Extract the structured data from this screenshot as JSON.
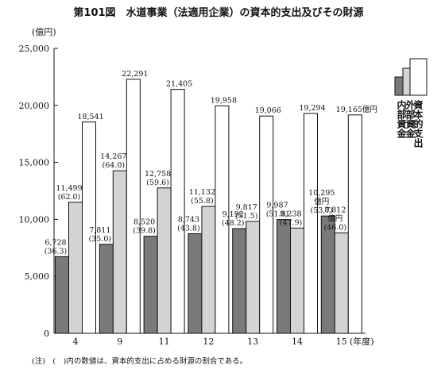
{
  "chart_data": {
    "type": "bar",
    "title": "第101図　水道事業（法適用企業）の資本的支出及びその財源",
    "y_label": "(億円)",
    "x_label": "(年度)",
    "categories": [
      "4",
      "9",
      "11",
      "12",
      "13",
      "14",
      "15"
    ],
    "series": [
      {
        "name": "内部資金",
        "color": "#7a7a7a",
        "values": [
          6728,
          7811,
          8520,
          8743,
          9192,
          9987,
          10295
        ],
        "value_labels": [
          "6,728",
          "7,811",
          "8,520",
          "8,743",
          "9,192",
          "9,987",
          "10,295 億円"
        ],
        "share_labels": [
          "(36.3)",
          "(35.0)",
          "(39.8)",
          "(43.8)",
          "(48.2)",
          "(51.8)",
          "(53.7)"
        ]
      },
      {
        "name": "外部資金",
        "color": "#d4d4d4",
        "values": [
          11499,
          14267,
          12758,
          11132,
          9817,
          9238,
          8812
        ],
        "value_labels": [
          "11,499",
          "14,267",
          "12,758",
          "11,132",
          "9,817",
          "9,238",
          "8,812 億円"
        ],
        "share_labels": [
          "(62.0)",
          "(64.0)",
          "(59.6)",
          "(55.8)",
          "(51.5)",
          "(47.9)",
          "(46.0)"
        ]
      },
      {
        "name": "資本的支出",
        "color": "#ffffff",
        "values": [
          18541,
          22291,
          21405,
          19958,
          19066,
          19294,
          19165
        ],
        "value_labels": [
          "18,541",
          "22,291",
          "21,405",
          "19,958",
          "19,066",
          "19,294",
          "19,165億円"
        ]
      }
    ],
    "ylim": [
      0,
      25000
    ],
    "yticks": [
      0,
      {
        "value": 5000,
        "label": "5,000"
      },
      {
        "value": 10000,
        "label": "10,000"
      },
      {
        "value": 15000,
        "label": "15,000"
      },
      {
        "value": 20000,
        "label": "20,000"
      },
      {
        "value": 25000,
        "label": "25,000"
      }
    ],
    "note": "(注)　(　)内の数値は、資本的支出に占める財源の割合である。"
  }
}
